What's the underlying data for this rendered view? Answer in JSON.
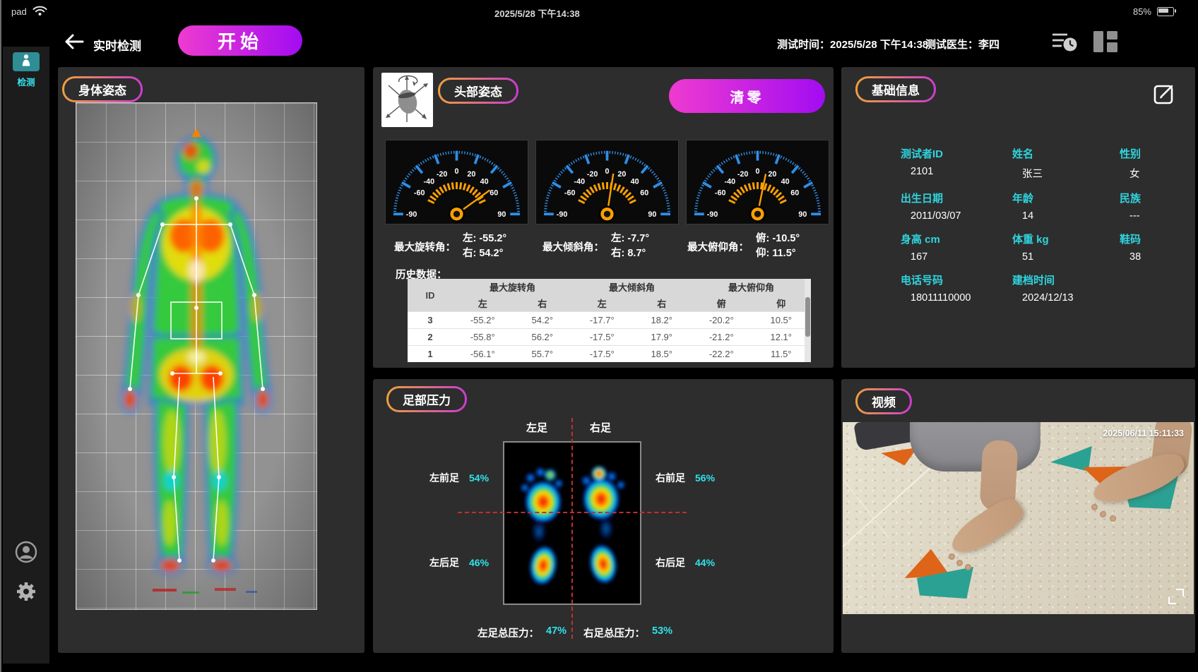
{
  "colors": {
    "accent_cyan": "#3adde8",
    "button_gradient_start": "#ee3bd0",
    "button_gradient_end": "#a30cf2",
    "pill_gradient_start": "#efa13b",
    "pill_gradient_end": "#cb3ad2",
    "gauge_blue": "#2e8fe8",
    "gauge_orange": "#ffa000",
    "sidebar_teal": "#2e8d95"
  },
  "status_bar": {
    "device": "pad",
    "time": "2025/5/28 下午14:38",
    "battery": "85%"
  },
  "sidebar": {
    "detect": "检测"
  },
  "header": {
    "title": "实时检测",
    "start": "开始",
    "time_label": "测试时间：",
    "time": "2025/5/28 下午14:38",
    "doctor_label": "测试医生：",
    "doctor": "李四"
  },
  "body_posture": {
    "title": "身体姿态"
  },
  "head_posture": {
    "title": "头部姿态",
    "reset": "清零",
    "scale_labels": [
      -90,
      -60,
      -40,
      -20,
      0,
      20,
      40,
      60,
      90
    ],
    "gauges": [
      {
        "name": "最大旋转角：",
        "line1": "左: -55.2°",
        "line2": "右: 54.2°",
        "needle": 54.2
      },
      {
        "name": "最大倾斜角：",
        "line1": "左: -7.7°",
        "line2": "右: 8.7°",
        "needle": 8.7
      },
      {
        "name": "最大俯仰角：",
        "line1": "俯: -10.5°",
        "line2": "仰: 11.5°",
        "needle": 11.5
      }
    ],
    "history_label": "历史数据：",
    "table": {
      "id_header": "ID",
      "groups": [
        "最大旋转角",
        "最大倾斜角",
        "最大俯仰角"
      ],
      "sub": [
        "左",
        "右",
        "左",
        "右",
        "俯",
        "仰"
      ],
      "rows": [
        [
          "3",
          "-55.2°",
          "54.2°",
          "-17.7°",
          "18.2°",
          "-20.2°",
          "10.5°"
        ],
        [
          "2",
          "-55.8°",
          "56.2°",
          "-17.5°",
          "17.9°",
          "-21.2°",
          "12.1°"
        ],
        [
          "1",
          "-56.1°",
          "55.7°",
          "-17.5°",
          "18.5°",
          "-22.2°",
          "11.5°"
        ]
      ]
    }
  },
  "basic_info": {
    "title": "基础信息",
    "fields": [
      {
        "label": "测试者ID",
        "value": "2101"
      },
      {
        "label": "姓名",
        "value": "张三"
      },
      {
        "label": "性别",
        "value": "女"
      },
      {
        "label": "出生日期",
        "value": "2011/03/07"
      },
      {
        "label": "年龄",
        "value": "14"
      },
      {
        "label": "民族",
        "value": "---"
      },
      {
        "label": "身高 cm",
        "value": "167"
      },
      {
        "label": "体重 kg",
        "value": "51"
      },
      {
        "label": "鞋码",
        "value": "38"
      },
      {
        "label": "电话号码",
        "value": "18011110000"
      },
      {
        "label": "建档时间",
        "value": "2024/12/13"
      }
    ]
  },
  "foot_pressure": {
    "title": "足部压力",
    "left_label": "左足",
    "right_label": "右足",
    "stats": [
      {
        "label": "左前足",
        "value": "54%"
      },
      {
        "label": "右前足",
        "value": "56%"
      },
      {
        "label": "左后足",
        "value": "46%"
      },
      {
        "label": "右后足",
        "value": "44%"
      }
    ],
    "totals": [
      {
        "label": "左足总压力：",
        "value": "47%"
      },
      {
        "label": "右足总压力：",
        "value": "53%"
      }
    ]
  },
  "video": {
    "title": "视频",
    "timestamp": "2025/06/11 15:11:33"
  }
}
